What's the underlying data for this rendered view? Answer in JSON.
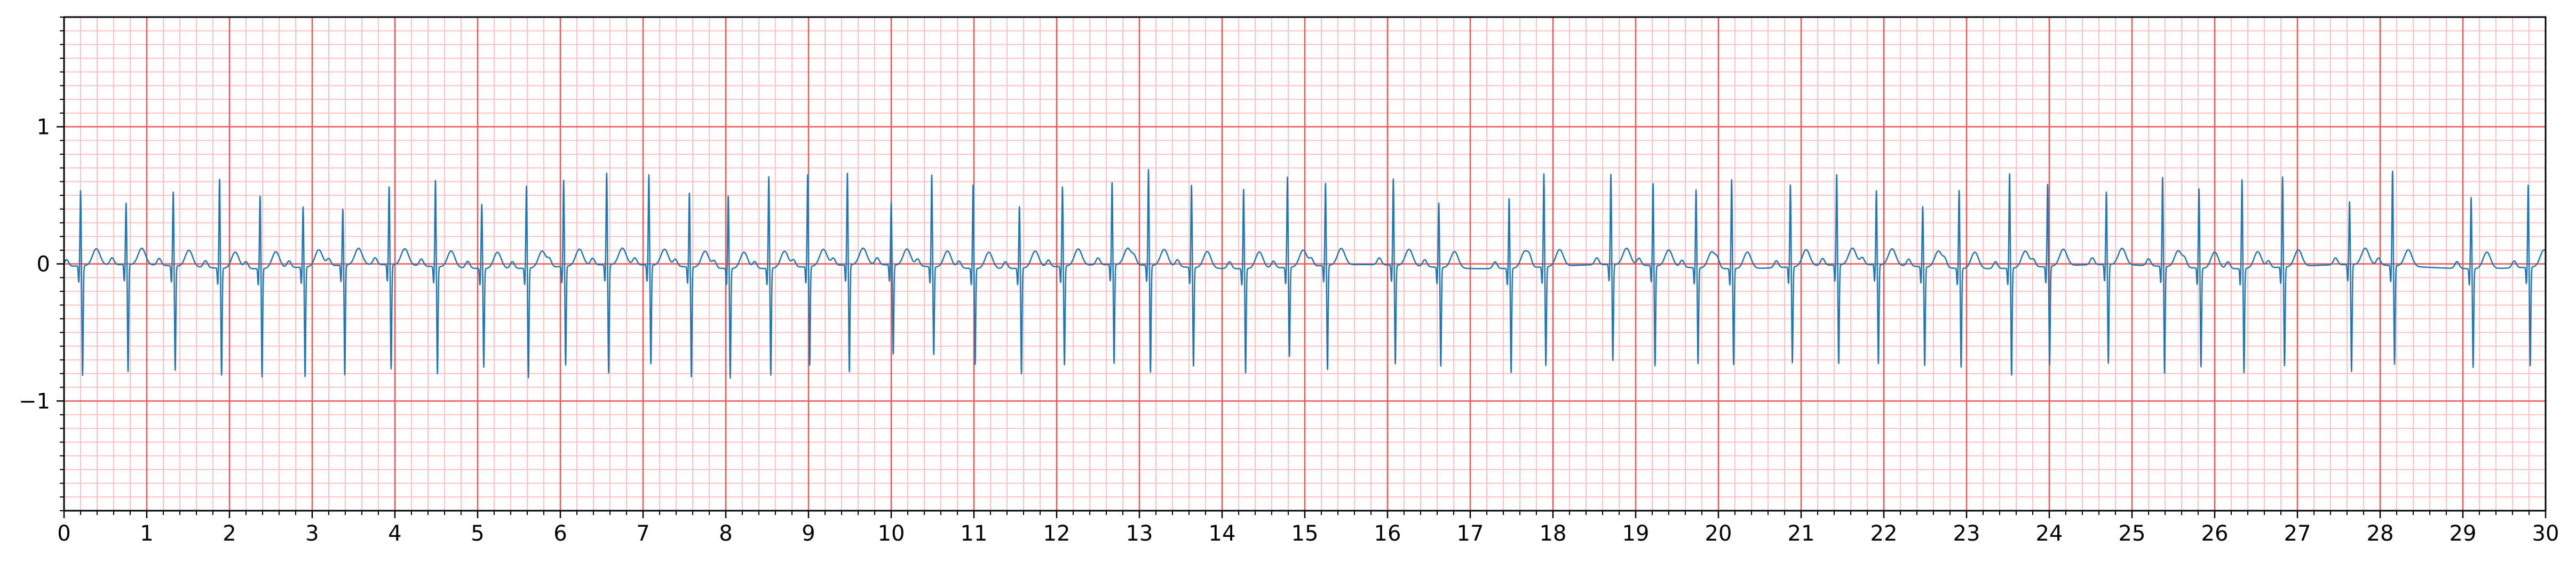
{
  "chart_data": {
    "type": "line",
    "title": "",
    "xlabel": "",
    "ylabel": "",
    "xlim": [
      0,
      30
    ],
    "ylim": [
      -1.8,
      1.8
    ],
    "x_major_ticks": [
      0,
      1,
      2,
      3,
      4,
      5,
      6,
      7,
      8,
      9,
      10,
      11,
      12,
      13,
      14,
      15,
      16,
      17,
      18,
      19,
      20,
      21,
      22,
      23,
      24,
      25,
      26,
      27,
      28,
      29,
      30
    ],
    "x_tick_labels": [
      "0",
      "1",
      "2",
      "3",
      "4",
      "5",
      "6",
      "7",
      "8",
      "9",
      "10",
      "11",
      "12",
      "13",
      "14",
      "15",
      "16",
      "17",
      "18",
      "19",
      "20",
      "21",
      "22",
      "23",
      "24",
      "25",
      "26",
      "27",
      "28",
      "29",
      "30"
    ],
    "y_major_ticks": [
      -1,
      0,
      1
    ],
    "y_tick_labels": [
      "−1",
      "0",
      "1"
    ],
    "x_minor_step": 0.2,
    "y_minor_step": 0.1,
    "grid": true,
    "colors": {
      "line": "#1f77b4",
      "grid_major": "#ee5555",
      "grid_minor": "#ffc2c2",
      "axis": "#000000"
    },
    "series": [
      {
        "beats": {
          "r_times": [
            0.2,
            0.75,
            1.32,
            1.88,
            2.37,
            2.89,
            3.37,
            3.93,
            4.49,
            5.05,
            5.59,
            6.04,
            6.56,
            7.07,
            7.56,
            8.03,
            8.52,
            8.99,
            9.47,
            10.0,
            10.49,
            10.99,
            11.55,
            12.07,
            12.67,
            13.11,
            13.63,
            14.26,
            14.79,
            15.25,
            16.07,
            16.62,
            17.47,
            17.89,
            18.7,
            19.21,
            19.73,
            20.16,
            20.87,
            21.43,
            21.91,
            22.47,
            22.91,
            23.52,
            23.98,
            24.69,
            25.37,
            25.81,
            26.33,
            26.82,
            27.63,
            28.15,
            29.1,
            29.79
          ],
          "r_amp": [
            0.55,
            0.45,
            0.54,
            0.65,
            0.53,
            0.44,
            0.41,
            0.57,
            0.63,
            0.47,
            0.6,
            0.63,
            0.67,
            0.66,
            0.54,
            0.53,
            0.67,
            0.67,
            0.67,
            0.46,
            0.67,
            0.61,
            0.45,
            0.58,
            0.6,
            0.7,
            0.6,
            0.58,
            0.66,
            0.6,
            0.63,
            0.47,
            0.51,
            0.68,
            0.66,
            0.6,
            0.57,
            0.65,
            0.6,
            0.66,
            0.54,
            0.44,
            0.57,
            0.69,
            0.6,
            0.53,
            0.65,
            0.58,
            0.65,
            0.66,
            0.46,
            0.69,
            0.52,
            0.6
          ],
          "s_amp": [
            -0.8,
            -0.78,
            -0.76,
            -0.78,
            -0.79,
            -0.8,
            -0.8,
            -0.76,
            -0.78,
            -0.72,
            -0.8,
            -0.72,
            -0.79,
            -0.72,
            -0.8,
            -0.8,
            -0.78,
            -0.72,
            -0.78,
            -0.65,
            -0.64,
            -0.7,
            -0.77,
            -0.72,
            -0.72,
            -0.78,
            -0.72,
            -0.76,
            -0.65,
            -0.76,
            -0.72,
            -0.72,
            -0.76,
            -0.72,
            -0.7,
            -0.73,
            -0.7,
            -0.7,
            -0.7,
            -0.72,
            -0.72,
            -0.72,
            -0.72,
            -0.78,
            -0.72,
            -0.72,
            -0.78,
            -0.72,
            -0.76,
            -0.72,
            -0.78,
            -0.72,
            -0.72,
            -0.72
          ],
          "t_amp": 0.12,
          "p_amp": 0.05
        }
      }
    ]
  }
}
